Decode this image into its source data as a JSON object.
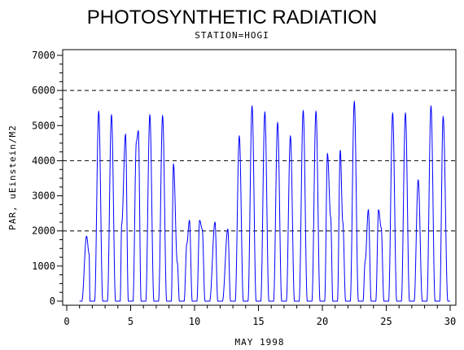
{
  "chart_data": {
    "type": "line",
    "title": "PHOTOSYNTHETIC RADIATION",
    "subtitle": "STATION=HOGI",
    "xlabel": "MAY 1998",
    "ylabel": "PAR, uEinstein/M2",
    "xlim": [
      0,
      30
    ],
    "ylim": [
      0,
      7000
    ],
    "x_ticks": [
      0,
      5,
      10,
      15,
      20,
      25,
      30
    ],
    "y_ticks": [
      0,
      1000,
      2000,
      3000,
      4000,
      5000,
      6000,
      7000
    ],
    "reference_lines": [
      2000,
      4000,
      6000
    ],
    "line_color": "#0000ff",
    "series": [
      {
        "daily_peaks": [
          {
            "day": 1,
            "peaks": [
              [
                1.55,
                1850
              ],
              [
                1.75,
                1350
              ]
            ]
          },
          {
            "day": 2,
            "peaks": [
              [
                2.5,
                5400
              ]
            ]
          },
          {
            "day": 3,
            "peaks": [
              [
                3.5,
                5300
              ]
            ]
          },
          {
            "day": 4,
            "peaks": [
              [
                4.3,
                2200
              ],
              [
                4.6,
                4750
              ]
            ]
          },
          {
            "day": 5,
            "peaks": [
              [
                5.45,
                4550
              ],
              [
                5.6,
                4850
              ]
            ]
          },
          {
            "day": 6,
            "peaks": [
              [
                6.5,
                5300
              ]
            ]
          },
          {
            "day": 7,
            "peaks": [
              [
                7.5,
                5280
              ]
            ]
          },
          {
            "day": 8,
            "peaks": [
              [
                8.35,
                3900
              ],
              [
                8.65,
                1100
              ]
            ]
          },
          {
            "day": 9,
            "peaks": [
              [
                9.4,
                1650
              ],
              [
                9.6,
                2300
              ]
            ]
          },
          {
            "day": 10,
            "peaks": [
              [
                10.4,
                2300
              ],
              [
                10.6,
                2050
              ]
            ]
          },
          {
            "day": 11,
            "peaks": [
              [
                11.6,
                2250
              ]
            ]
          },
          {
            "day": 12,
            "peaks": [
              [
                12.6,
                2050
              ]
            ]
          },
          {
            "day": 13,
            "peaks": [
              [
                13.5,
                4700
              ]
            ]
          },
          {
            "day": 14,
            "peaks": [
              [
                14.5,
                5550
              ]
            ]
          },
          {
            "day": 15,
            "peaks": [
              [
                15.5,
                5380
              ]
            ]
          },
          {
            "day": 16,
            "peaks": [
              [
                16.5,
                5080
              ]
            ]
          },
          {
            "day": 17,
            "peaks": [
              [
                17.5,
                4700
              ]
            ]
          },
          {
            "day": 18,
            "peaks": [
              [
                18.5,
                5420
              ]
            ]
          },
          {
            "day": 19,
            "peaks": [
              [
                19.5,
                5400
              ]
            ]
          },
          {
            "day": 20,
            "peaks": [
              [
                20.4,
                4200
              ],
              [
                20.65,
                2400
              ]
            ]
          },
          {
            "day": 21,
            "peaks": [
              [
                21.4,
                4300
              ],
              [
                21.6,
                2250
              ]
            ]
          },
          {
            "day": 22,
            "peaks": [
              [
                22.5,
                5680
              ]
            ]
          },
          {
            "day": 23,
            "peaks": [
              [
                23.35,
                1150
              ],
              [
                23.6,
                2600
              ]
            ]
          },
          {
            "day": 24,
            "peaks": [
              [
                24.4,
                2600
              ],
              [
                24.6,
                2100
              ]
            ]
          },
          {
            "day": 25,
            "peaks": [
              [
                25.5,
                5350
              ]
            ]
          },
          {
            "day": 26,
            "peaks": [
              [
                26.5,
                5350
              ]
            ]
          },
          {
            "day": 27,
            "peaks": [
              [
                27.5,
                3450
              ]
            ]
          },
          {
            "day": 28,
            "peaks": [
              [
                28.5,
                5550
              ]
            ]
          },
          {
            "day": 29,
            "peaks": [
              [
                29.45,
                5250
              ]
            ]
          }
        ]
      }
    ]
  }
}
